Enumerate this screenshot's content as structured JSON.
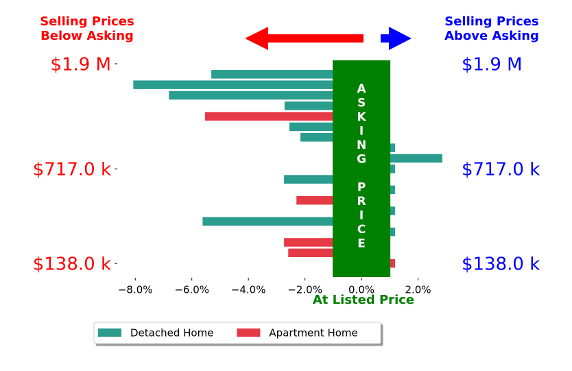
{
  "chart_data": {
    "type": "barh",
    "left_heading": [
      "Selling Prices",
      "Below Asking"
    ],
    "right_heading": [
      "Selling Prices",
      "Above Asking"
    ],
    "band_label": "ASKING PRICE",
    "x_label": "At Listed Price",
    "asking_band": [
      -1.02,
      1.02
    ],
    "categories": [
      "$1.9 M",
      null,
      null,
      null,
      null,
      null,
      null,
      null,
      null,
      null,
      "$717.0 k",
      null,
      null,
      null,
      null,
      null,
      null,
      null,
      null,
      "$138.0 k"
    ],
    "series": [
      {
        "name": "Detached Home",
        "color": "#2a9d8f",
        "values": [
          null,
          -5.31,
          -8.07,
          -6.81,
          -2.72,
          null,
          -2.55,
          -2.16,
          1.19,
          2.86,
          1.19,
          -2.74,
          1.19,
          null,
          1.19,
          -5.62,
          1.19,
          null,
          null,
          null
        ]
      },
      {
        "name": "Apartment Home",
        "color": "#e63946",
        "values": [
          null,
          null,
          null,
          null,
          null,
          -5.53,
          null,
          null,
          null,
          null,
          null,
          null,
          null,
          -2.3,
          null,
          null,
          null,
          -2.74,
          -2.59,
          1.19
        ]
      }
    ],
    "xlim": [
      -8.66,
      2.86
    ],
    "xticks": [
      {
        "value": -8,
        "label": "−8.0%"
      },
      {
        "value": -6,
        "label": "−6.0%"
      },
      {
        "value": -4,
        "label": "−4.0%"
      },
      {
        "value": -2,
        "label": "−2.0%"
      },
      {
        "value": 0,
        "label": "0.0%"
      },
      {
        "value": 2,
        "label": "2.0%"
      }
    ]
  }
}
